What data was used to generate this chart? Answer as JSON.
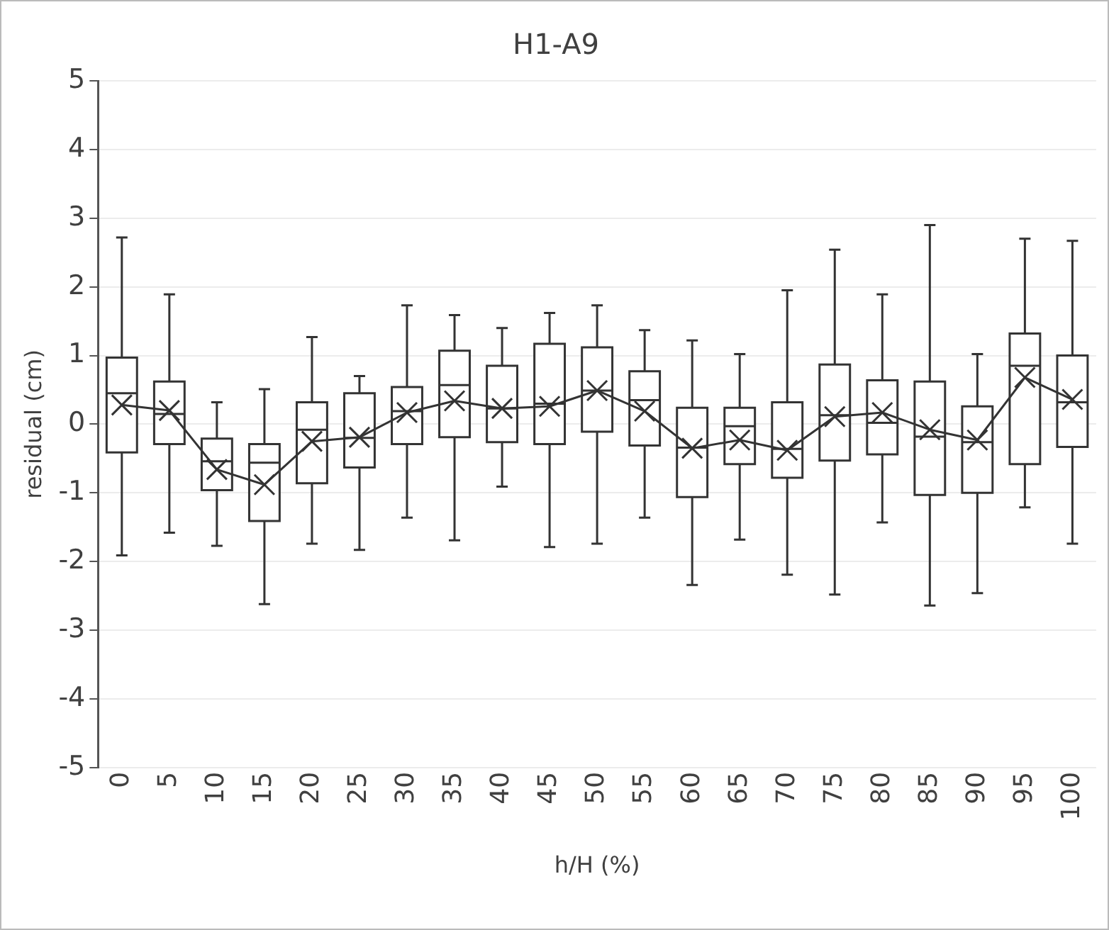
{
  "chart_data": {
    "type": "box",
    "title": "H1-A9",
    "xlabel": "h/H (%)",
    "ylabel": "residual (cm)",
    "categories": [
      "0",
      "5",
      "10",
      "15",
      "20",
      "25",
      "30",
      "35",
      "40",
      "45",
      "50",
      "55",
      "60",
      "65",
      "70",
      "75",
      "80",
      "85",
      "90",
      "95",
      "100"
    ],
    "ylim": [
      -5,
      5
    ],
    "yticks": [
      -5,
      -4,
      -3,
      -2,
      -1,
      0,
      1,
      2,
      3,
      4,
      5
    ],
    "grid": "y",
    "legend": false,
    "boxes": [
      {
        "low": -1.91,
        "q1": -0.41,
        "median": 0.45,
        "q3": 0.97,
        "high": 2.72,
        "mean": 0.28
      },
      {
        "low": -1.58,
        "q1": -0.29,
        "median": 0.15,
        "q3": 0.62,
        "high": 1.89,
        "mean": 0.2
      },
      {
        "low": -1.77,
        "q1": -0.96,
        "median": -0.54,
        "q3": -0.21,
        "high": 0.32,
        "mean": -0.66
      },
      {
        "low": -2.62,
        "q1": -1.41,
        "median": -0.56,
        "q3": -0.29,
        "high": 0.51,
        "mean": -0.88
      },
      {
        "low": -1.74,
        "q1": -0.86,
        "median": -0.08,
        "q3": 0.32,
        "high": 1.27,
        "mean": -0.25
      },
      {
        "low": -1.83,
        "q1": -0.63,
        "median": -0.2,
        "q3": 0.45,
        "high": 0.7,
        "mean": -0.19
      },
      {
        "low": -1.36,
        "q1": -0.29,
        "median": 0.19,
        "q3": 0.54,
        "high": 1.73,
        "mean": 0.17
      },
      {
        "low": -1.69,
        "q1": -0.19,
        "median": 0.57,
        "q3": 1.07,
        "high": 1.59,
        "mean": 0.34
      },
      {
        "low": -0.91,
        "q1": -0.26,
        "median": 0.23,
        "q3": 0.85,
        "high": 1.4,
        "mean": 0.23
      },
      {
        "low": -1.79,
        "q1": -0.29,
        "median": 0.3,
        "q3": 1.17,
        "high": 1.62,
        "mean": 0.26
      },
      {
        "low": -1.74,
        "q1": -0.11,
        "median": 0.49,
        "q3": 1.12,
        "high": 1.73,
        "mean": 0.49
      },
      {
        "low": -1.36,
        "q1": -0.31,
        "median": 0.35,
        "q3": 0.77,
        "high": 1.37,
        "mean": 0.19
      },
      {
        "low": -2.34,
        "q1": -1.06,
        "median": -0.34,
        "q3": 0.24,
        "high": 1.22,
        "mean": -0.35
      },
      {
        "low": -1.68,
        "q1": -0.58,
        "median": -0.03,
        "q3": 0.24,
        "high": 1.02,
        "mean": -0.23
      },
      {
        "low": -2.19,
        "q1": -0.78,
        "median": -0.36,
        "q3": 0.32,
        "high": 1.95,
        "mean": -0.38
      },
      {
        "low": -2.48,
        "q1": -0.53,
        "median": 0.13,
        "q3": 0.87,
        "high": 2.54,
        "mean": 0.11
      },
      {
        "low": -1.43,
        "q1": -0.44,
        "median": 0.02,
        "q3": 0.64,
        "high": 1.89,
        "mean": 0.17
      },
      {
        "low": -2.64,
        "q1": -1.03,
        "median": -0.18,
        "q3": 0.62,
        "high": 2.9,
        "mean": -0.08
      },
      {
        "low": -2.46,
        "q1": -1.0,
        "median": -0.26,
        "q3": 0.26,
        "high": 1.02,
        "mean": -0.23
      },
      {
        "low": -1.21,
        "q1": -0.58,
        "median": 0.85,
        "q3": 1.32,
        "high": 2.7,
        "mean": 0.68
      },
      {
        "low": -1.74,
        "q1": -0.33,
        "median": 0.32,
        "q3": 1.0,
        "high": 2.67,
        "mean": 0.36
      }
    ],
    "series": [
      {
        "type": "line",
        "color": "#333333",
        "marker": "none",
        "line_style": "solid",
        "values": [
          0.28,
          0.2,
          -0.66,
          -0.88,
          -0.25,
          -0.19,
          0.17,
          0.34,
          0.23,
          0.26,
          0.49,
          0.19,
          -0.35,
          -0.23,
          -0.38,
          0.11,
          0.17,
          -0.08,
          -0.23,
          0.68,
          0.36
        ]
      }
    ]
  }
}
